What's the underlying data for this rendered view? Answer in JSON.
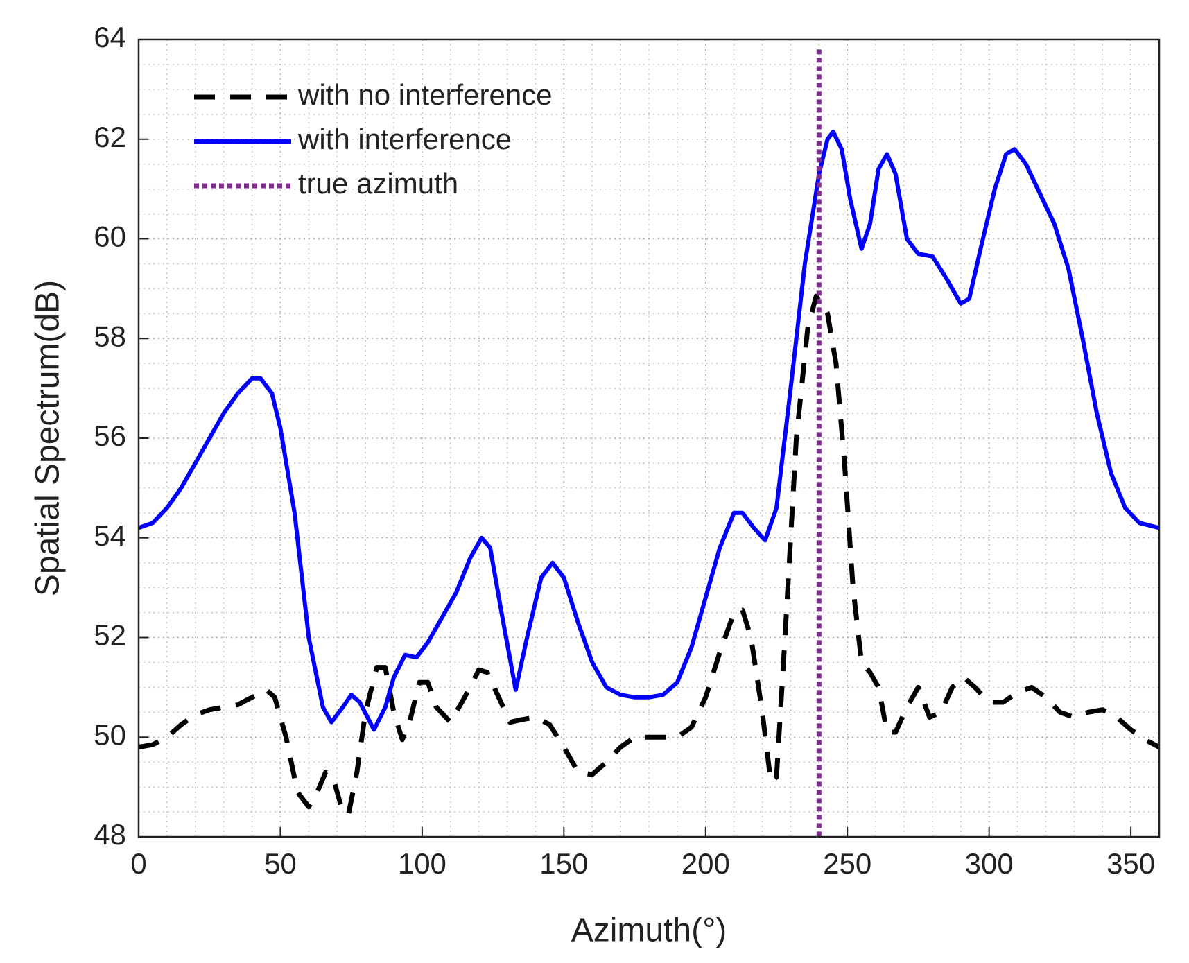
{
  "chart_data": {
    "type": "line",
    "xlabel": "Azimuth(°)",
    "ylabel": "Spatial Spectrum(dB)",
    "xlim": [
      0,
      360
    ],
    "ylim": [
      48,
      64
    ],
    "xticks": [
      0,
      50,
      100,
      150,
      200,
      250,
      300,
      350
    ],
    "yticks": [
      48,
      50,
      52,
      54,
      56,
      58,
      60,
      62,
      64
    ],
    "grid": true,
    "minor_grid": {
      "x": 10,
      "y": 0.5
    },
    "legend": "upper left",
    "series": [
      {
        "name": "with no interference",
        "color": "#000000",
        "dash": "dashed",
        "x": [
          0,
          5,
          10,
          15,
          20,
          25,
          30,
          35,
          40,
          45,
          48,
          52,
          56,
          60,
          63,
          66,
          69,
          72,
          74,
          77,
          80,
          84,
          87,
          90,
          93,
          96,
          99,
          102,
          105,
          110,
          115,
          120,
          123,
          127,
          131,
          135,
          140,
          145,
          150,
          155,
          160,
          165,
          170,
          175,
          180,
          185,
          190,
          195,
          200,
          205,
          210,
          213,
          216,
          220,
          223,
          225,
          228,
          232,
          236,
          239,
          243,
          246,
          249,
          252,
          255,
          258,
          261,
          264,
          267,
          271,
          275,
          279,
          283,
          287,
          291,
          295,
          300,
          305,
          310,
          315,
          320,
          325,
          330,
          335,
          340,
          345,
          350,
          355,
          360
        ],
        "values": [
          49.8,
          49.85,
          50.0,
          50.25,
          50.45,
          50.55,
          50.6,
          50.65,
          50.8,
          50.95,
          50.8,
          50.0,
          48.9,
          48.6,
          48.9,
          49.3,
          49.1,
          48.5,
          48.45,
          49.3,
          50.5,
          51.4,
          51.4,
          50.5,
          49.95,
          50.4,
          51.1,
          51.1,
          50.6,
          50.3,
          50.8,
          51.35,
          51.3,
          50.8,
          50.3,
          50.35,
          50.4,
          50.25,
          49.8,
          49.3,
          49.25,
          49.5,
          49.8,
          50.0,
          50.0,
          50.0,
          50.0,
          50.2,
          50.8,
          51.7,
          52.5,
          52.55,
          52.0,
          50.5,
          49.1,
          49.2,
          52.0,
          56.0,
          58.2,
          58.85,
          58.5,
          57.5,
          55.5,
          53.0,
          51.5,
          51.3,
          51.0,
          50.1,
          50.1,
          50.6,
          51.0,
          50.4,
          50.5,
          51.0,
          51.2,
          51.0,
          50.7,
          50.7,
          50.9,
          51.0,
          50.8,
          50.5,
          50.4,
          50.5,
          50.55,
          50.4,
          50.15,
          49.95,
          49.8
        ]
      },
      {
        "name": "with interference",
        "color": "#0000ff",
        "dash": "solid",
        "x": [
          0,
          5,
          10,
          15,
          20,
          25,
          30,
          35,
          40,
          43,
          47,
          50,
          55,
          60,
          65,
          68,
          72,
          75,
          78,
          83,
          87,
          90,
          94,
          98,
          102,
          107,
          112,
          117,
          121,
          124,
          128,
          133,
          137,
          142,
          146,
          150,
          155,
          160,
          165,
          170,
          175,
          180,
          185,
          190,
          195,
          200,
          205,
          210,
          213,
          217,
          221,
          225,
          230,
          235,
          240,
          243,
          245,
          248,
          251,
          255,
          258,
          261,
          264,
          267,
          271,
          275,
          280,
          285,
          290,
          293,
          297,
          302,
          306,
          309,
          313,
          318,
          323,
          328,
          333,
          338,
          343,
          348,
          353,
          360
        ],
        "values": [
          54.2,
          54.3,
          54.6,
          55.0,
          55.5,
          56.0,
          56.5,
          56.9,
          57.2,
          57.2,
          56.9,
          56.2,
          54.5,
          52.0,
          50.6,
          50.3,
          50.6,
          50.85,
          50.7,
          50.15,
          50.6,
          51.2,
          51.65,
          51.6,
          51.9,
          52.4,
          52.9,
          53.6,
          54.0,
          53.8,
          52.5,
          50.95,
          52.0,
          53.2,
          53.5,
          53.2,
          52.3,
          51.5,
          51.0,
          50.85,
          50.8,
          50.8,
          50.85,
          51.1,
          51.8,
          52.8,
          53.8,
          54.5,
          54.5,
          54.2,
          53.95,
          54.6,
          57.0,
          59.5,
          61.3,
          62.0,
          62.15,
          61.8,
          60.8,
          59.8,
          60.3,
          61.4,
          61.7,
          61.3,
          60.0,
          59.7,
          59.65,
          59.2,
          58.7,
          58.8,
          59.8,
          61.0,
          61.7,
          61.8,
          61.5,
          60.9,
          60.3,
          59.4,
          58.0,
          56.5,
          55.3,
          54.6,
          54.3,
          54.2
        ]
      },
      {
        "name": "true azimuth",
        "color": "#7e2f8e",
        "dash": "dotted",
        "x": [
          240,
          240
        ],
        "values": [
          63.8,
          48
        ]
      }
    ]
  }
}
